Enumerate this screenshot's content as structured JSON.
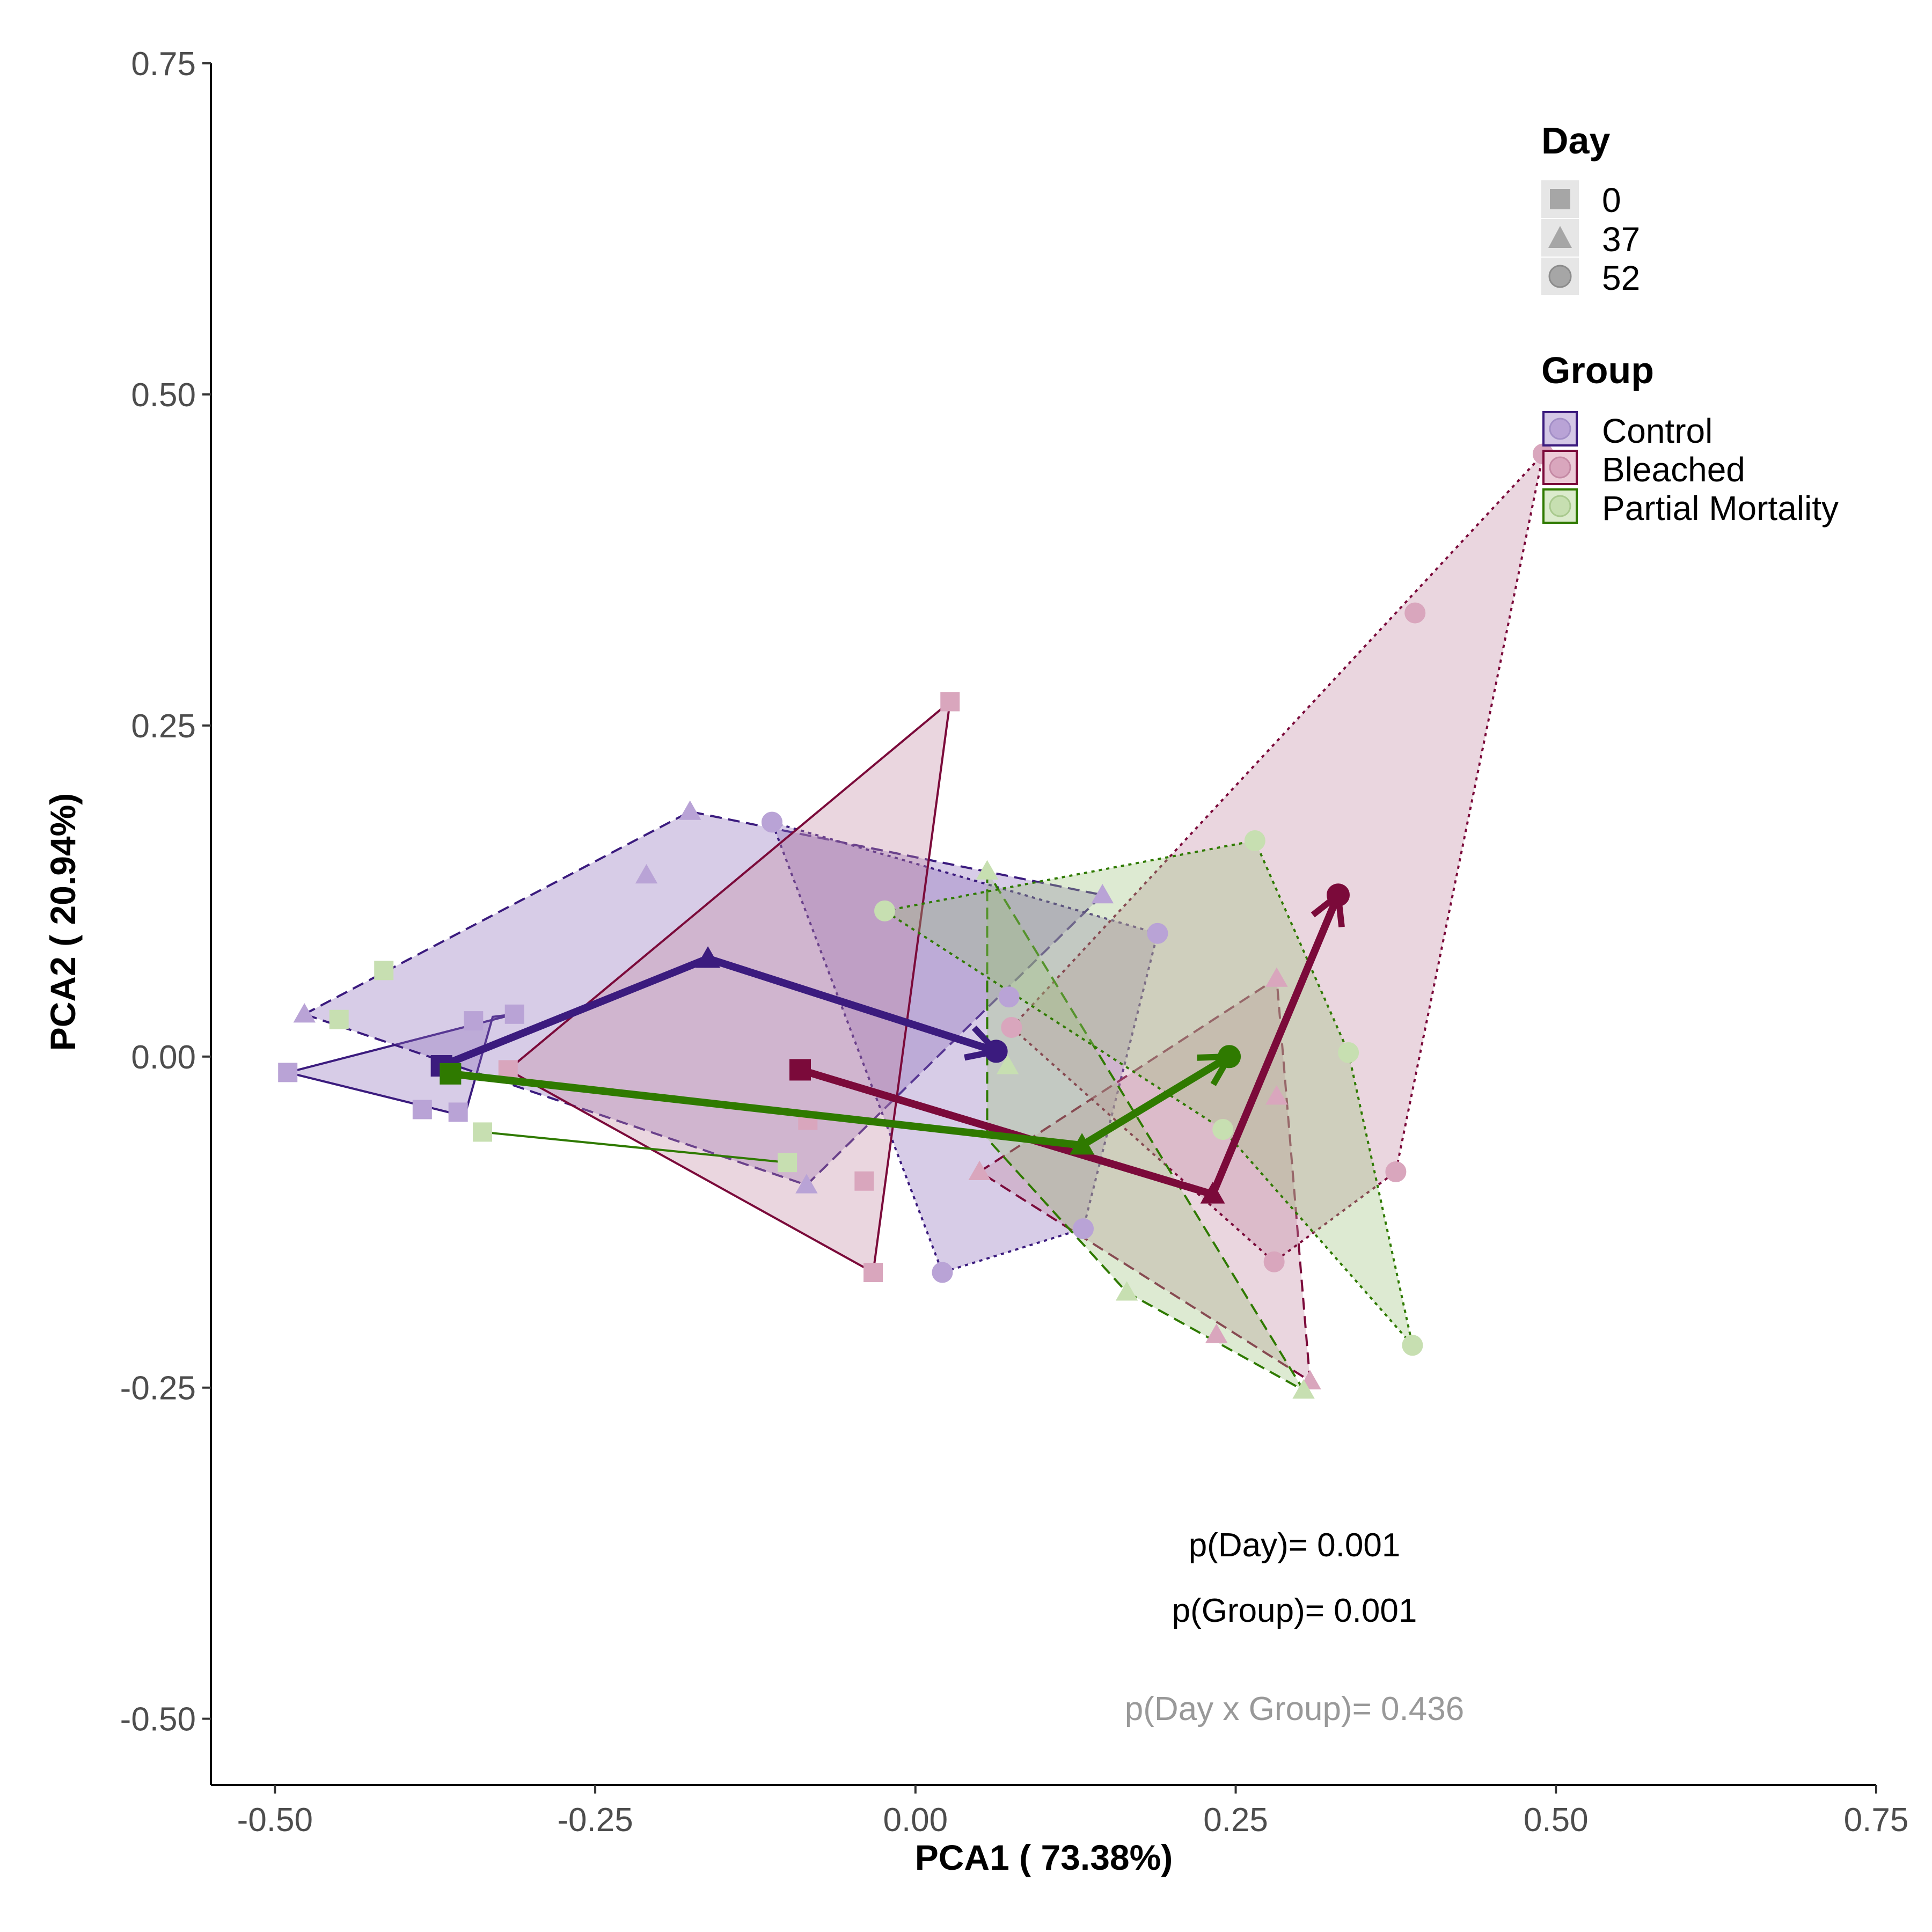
{
  "chart_data": {
    "type": "scatter",
    "xlabel": "PCA1 ( 73.38%)",
    "ylabel": "PCA2 ( 20.94%)",
    "xlim": [
      -0.55,
      0.75
    ],
    "ylim": [
      -0.55,
      0.75
    ],
    "xticks": [
      "-0.50",
      "-0.25",
      "0.00",
      "0.25",
      "0.50",
      "0.75"
    ],
    "yticks": [
      "-0.50",
      "-0.25",
      "0.00",
      "0.25",
      "0.50",
      "0.75"
    ],
    "grid": false,
    "legend_position": "top-right",
    "legend_day": {
      "title": "Day",
      "items": [
        {
          "label": "0",
          "shape": "square"
        },
        {
          "label": "37",
          "shape": "triangle"
        },
        {
          "label": "52",
          "shape": "circle"
        }
      ]
    },
    "legend_group": {
      "title": "Group",
      "items": [
        {
          "label": "Control",
          "color": "#3b1b7e"
        },
        {
          "label": "Bleached",
          "color": "#7b0a3a"
        },
        {
          "label": "Partial Mortality",
          "color": "#2f7a00"
        }
      ]
    },
    "annotations": {
      "p_day": "p(Day)= 0.001",
      "p_group": "p(Group)= 0.001",
      "p_interaction": "p(Day x Group)= 0.436"
    },
    "groups": [
      {
        "name": "Control",
        "line_color": "#3b1b7e",
        "fill_color": "#8b6dbb",
        "point_color": "#b9a3d6",
        "hulls": [
          {
            "day": "0",
            "line": "solid",
            "points": [
              [
                -0.49,
                -0.012
              ],
              [
                -0.352,
                -0.045
              ],
              [
                -0.33,
                0.03
              ],
              [
                -0.313,
                0.032
              ]
            ]
          },
          {
            "day": "37",
            "line": "dashed",
            "points": [
              [
                -0.477,
                0.032
              ],
              [
                -0.176,
                0.185
              ],
              [
                0.146,
                0.122
              ],
              [
                -0.085,
                -0.097
              ]
            ]
          },
          {
            "day": "52",
            "line": "dotted",
            "points": [
              [
                -0.112,
                0.177
              ],
              [
                0.189,
                0.093
              ],
              [
                0.131,
                -0.13
              ],
              [
                0.021,
                -0.163
              ]
            ]
          }
        ],
        "points": [
          {
            "day": "0",
            "x": -0.49,
            "y": -0.012
          },
          {
            "day": "0",
            "x": -0.385,
            "y": -0.04
          },
          {
            "day": "0",
            "x": -0.357,
            "y": -0.042
          },
          {
            "day": "0",
            "x": -0.345,
            "y": 0.027
          },
          {
            "day": "0",
            "x": -0.313,
            "y": 0.032
          },
          {
            "day": "37",
            "x": -0.477,
            "y": 0.032
          },
          {
            "day": "37",
            "x": -0.21,
            "y": 0.137
          },
          {
            "day": "37",
            "x": -0.176,
            "y": 0.185
          },
          {
            "day": "37",
            "x": 0.146,
            "y": 0.122
          },
          {
            "day": "37",
            "x": -0.085,
            "y": -0.097
          },
          {
            "day": "52",
            "x": -0.112,
            "y": 0.177
          },
          {
            "day": "52",
            "x": 0.189,
            "y": 0.093
          },
          {
            "day": "52",
            "x": 0.131,
            "y": -0.13
          },
          {
            "day": "52",
            "x": 0.021,
            "y": -0.163
          },
          {
            "day": "52",
            "x": 0.073,
            "y": 0.045
          }
        ],
        "centroids": [
          [
            -0.37,
            -0.007
          ],
          [
            -0.162,
            0.074
          ],
          [
            0.063,
            0.004
          ]
        ]
      },
      {
        "name": "Bleached",
        "line_color": "#7b0a3a",
        "fill_color": "#c38aa2",
        "point_color": "#d9a6bd",
        "hulls": [
          {
            "day": "0",
            "line": "solid",
            "points": [
              [
                -0.318,
                -0.01
              ],
              [
                0.027,
                0.268
              ],
              [
                -0.033,
                -0.163
              ]
            ]
          },
          {
            "day": "37",
            "line": "dashed",
            "points": [
              [
                0.05,
                -0.087
              ],
              [
                0.282,
                0.059
              ],
              [
                0.308,
                -0.245
              ]
            ]
          },
          {
            "day": "52",
            "line": "dotted",
            "points": [
              [
                0.075,
                0.022
              ],
              [
                0.49,
                0.455
              ],
              [
                0.375,
                -0.087
              ],
              [
                0.28,
                -0.155
              ]
            ]
          }
        ],
        "points": [
          {
            "day": "0",
            "x": -0.318,
            "y": -0.01
          },
          {
            "day": "0",
            "x": 0.027,
            "y": 0.268
          },
          {
            "day": "0",
            "x": -0.033,
            "y": -0.163
          },
          {
            "day": "0",
            "x": -0.084,
            "y": -0.048
          },
          {
            "day": "0",
            "x": -0.04,
            "y": -0.094
          },
          {
            "day": "37",
            "x": 0.05,
            "y": -0.087
          },
          {
            "day": "37",
            "x": 0.282,
            "y": 0.059
          },
          {
            "day": "37",
            "x": 0.308,
            "y": -0.245
          },
          {
            "day": "37",
            "x": 0.282,
            "y": -0.03
          },
          {
            "day": "37",
            "x": 0.235,
            "y": -0.21
          },
          {
            "day": "52",
            "x": 0.075,
            "y": 0.022
          },
          {
            "day": "52",
            "x": 0.49,
            "y": 0.455
          },
          {
            "day": "52",
            "x": 0.39,
            "y": 0.335
          },
          {
            "day": "52",
            "x": 0.375,
            "y": -0.087
          },
          {
            "day": "52",
            "x": 0.28,
            "y": -0.155
          }
        ],
        "centroids": [
          [
            -0.09,
            -0.01
          ],
          [
            0.232,
            -0.104
          ],
          [
            0.33,
            0.122
          ]
        ]
      },
      {
        "name": "Partial Mortality",
        "line_color": "#2f7a00",
        "fill_color": "#9fc47d",
        "point_color": "#c7dfb1",
        "hulls": [
          {
            "day": "0",
            "line": "solid",
            "points": [
              [
                -0.338,
                -0.057
              ],
              [
                -0.1,
                -0.08
              ]
            ]
          },
          {
            "day": "37",
            "line": "dashed",
            "points": [
              [
                0.056,
                0.14
              ],
              [
                0.056,
                -0.062
              ],
              [
                0.165,
                -0.178
              ],
              [
                0.303,
                -0.252
              ]
            ]
          },
          {
            "day": "52",
            "line": "dotted",
            "points": [
              [
                -0.024,
                0.11
              ],
              [
                0.265,
                0.163
              ],
              [
                0.338,
                0.003
              ],
              [
                0.388,
                -0.218
              ],
              [
                0.24,
                -0.055
              ]
            ]
          }
        ],
        "points": [
          {
            "day": "0",
            "x": -0.338,
            "y": -0.057
          },
          {
            "day": "0",
            "x": -0.415,
            "y": 0.065
          },
          {
            "day": "0",
            "x": -0.45,
            "y": 0.028
          },
          {
            "day": "0",
            "x": -0.1,
            "y": -0.08
          },
          {
            "day": "37",
            "x": 0.056,
            "y": 0.14
          },
          {
            "day": "37",
            "x": 0.165,
            "y": -0.178
          },
          {
            "day": "37",
            "x": 0.303,
            "y": -0.252
          },
          {
            "day": "37",
            "x": 0.072,
            "y": -0.007
          },
          {
            "day": "52",
            "x": -0.024,
            "y": 0.11
          },
          {
            "day": "52",
            "x": 0.265,
            "y": 0.163
          },
          {
            "day": "52",
            "x": 0.338,
            "y": 0.003
          },
          {
            "day": "52",
            "x": 0.388,
            "y": -0.218
          },
          {
            "day": "52",
            "x": 0.24,
            "y": -0.055
          }
        ],
        "centroids": [
          [
            -0.363,
            -0.013
          ],
          [
            0.13,
            -0.067
          ],
          [
            0.245,
            0.0
          ]
        ]
      }
    ]
  }
}
